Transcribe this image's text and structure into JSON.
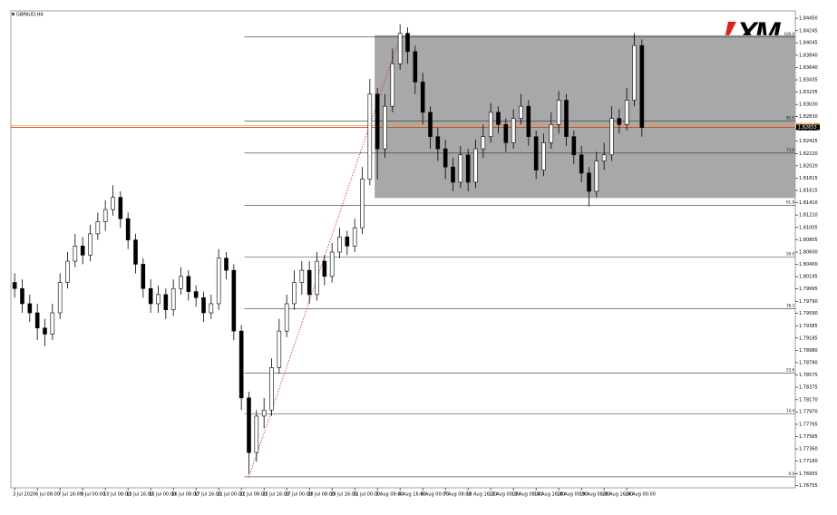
{
  "chart_data": {
    "type": "candlestick",
    "title": "GBPAUD,H4",
    "logo": "XM",
    "categories": [
      "3 Jul 2020",
      null,
      null,
      "6 Jul 08:00",
      null,
      null,
      "7 Jul 16:00",
      null,
      null,
      "9 Jul 00:00",
      null,
      null,
      "10 Jul 08:00",
      null,
      null,
      "13 Jul 16:00",
      null,
      null,
      "15 Jul 00:00",
      null,
      null,
      "16 Jul 08:00",
      null,
      null,
      "17 Jul 16:00",
      null,
      null,
      "21 Jul 00:00",
      null,
      null,
      "22 Jul 08:00",
      null,
      null,
      "23 Jul 16:00",
      null,
      null,
      "27 Jul 00:00",
      null,
      null,
      "28 Jul 08:00",
      null,
      null,
      "29 Jul 16:00",
      null,
      null,
      "31 Jul 00:00",
      null,
      null,
      "3 Aug 08:00",
      null,
      null,
      "4 Aug 16:00",
      null,
      null,
      "6 Aug 00:00",
      null,
      null,
      "7 Aug 08:00",
      null,
      null,
      "10 Aug 16:00",
      null,
      null,
      "12 Aug 00:00",
      null,
      null,
      "13 Aug 08:00",
      null,
      null,
      "14 Aug 16:00",
      null,
      null,
      "18 Aug 00:00",
      null,
      null,
      "19 Aug 08:00",
      null,
      null,
      "20 Aug 16:00",
      null,
      null,
      "24 Aug 00:00",
      null,
      null
    ],
    "open": [
      1.801,
      1.8,
      1.7975,
      1.796,
      1.7935,
      1.7925,
      1.796,
      1.801,
      1.8045,
      1.807,
      1.8055,
      1.809,
      1.811,
      1.813,
      1.815,
      1.8115,
      1.808,
      1.804,
      1.8,
      1.7975,
      1.799,
      1.7965,
      1.8,
      1.802,
      1.7995,
      1.7985,
      1.796,
      1.7975,
      1.805,
      1.803,
      1.793,
      1.782,
      1.773,
      1.779,
      1.78,
      1.787,
      1.793,
      1.7975,
      1.801,
      1.803,
      1.799,
      1.8045,
      1.802,
      1.806,
      1.8085,
      1.807,
      1.81,
      1.818,
      1.832,
      1.823,
      1.83,
      1.837,
      1.842,
      1.839,
      1.834,
      1.829,
      1.825,
      1.823,
      1.82,
      1.8175,
      1.822,
      1.8175,
      1.823,
      1.825,
      1.829,
      1.827,
      1.824,
      1.828,
      1.83,
      1.825,
      1.8195,
      1.824,
      1.827,
      1.831,
      1.825,
      1.822,
      1.819,
      1.816,
      1.821,
      1.822,
      1.828,
      1.827,
      1.831,
      1.84
    ],
    "high": [
      1.8025,
      1.8015,
      1.799,
      1.7975,
      1.795,
      1.7975,
      1.8025,
      1.806,
      1.809,
      1.8085,
      1.8105,
      1.8125,
      1.8145,
      1.817,
      1.816,
      1.8125,
      1.809,
      1.805,
      1.8015,
      1.8005,
      1.8,
      1.8015,
      1.8035,
      1.803,
      1.8005,
      1.7995,
      1.799,
      1.8065,
      1.806,
      1.804,
      1.794,
      1.783,
      1.78,
      1.782,
      1.7885,
      1.795,
      1.799,
      1.803,
      1.8045,
      1.8045,
      1.806,
      1.8055,
      1.8075,
      1.81,
      1.8095,
      1.8115,
      1.82,
      1.8345,
      1.833,
      1.832,
      1.8395,
      1.8435,
      1.843,
      1.84,
      1.8355,
      1.83,
      1.8265,
      1.8245,
      1.8215,
      1.8235,
      1.823,
      1.8245,
      1.827,
      1.8305,
      1.83,
      1.828,
      1.8295,
      1.832,
      1.831,
      1.826,
      1.8255,
      1.829,
      1.8325,
      1.832,
      1.826,
      1.8235,
      1.82,
      1.8225,
      1.824,
      1.83,
      1.8295,
      1.833,
      1.842,
      1.841
    ],
    "low": [
      1.7985,
      1.796,
      1.7945,
      1.7915,
      1.7905,
      1.7915,
      1.795,
      1.8,
      1.8035,
      1.804,
      1.8045,
      1.808,
      1.8095,
      1.812,
      1.81,
      1.8065,
      1.8025,
      1.7985,
      1.796,
      1.796,
      1.795,
      1.7955,
      1.799,
      1.798,
      1.797,
      1.7945,
      1.795,
      1.7965,
      1.8015,
      1.7915,
      1.78,
      1.7695,
      1.7715,
      1.777,
      1.779,
      1.786,
      1.792,
      1.7965,
      1.799,
      1.7975,
      1.798,
      1.8005,
      1.801,
      1.805,
      1.8055,
      1.806,
      1.809,
      1.817,
      1.818,
      1.8215,
      1.829,
      1.836,
      1.837,
      1.832,
      1.827,
      1.823,
      1.821,
      1.818,
      1.816,
      1.8165,
      1.816,
      1.8165,
      1.8215,
      1.824,
      1.8255,
      1.8225,
      1.823,
      1.827,
      1.8235,
      1.818,
      1.8185,
      1.823,
      1.8255,
      1.8235,
      1.8205,
      1.8175,
      1.8135,
      1.815,
      1.8195,
      1.821,
      1.8255,
      1.826,
      1.83,
      1.825
    ],
    "close": [
      1.8,
      1.7975,
      1.796,
      1.7935,
      1.7925,
      1.796,
      1.801,
      1.8045,
      1.807,
      1.8055,
      1.809,
      1.811,
      1.813,
      1.815,
      1.8115,
      1.808,
      1.804,
      1.8,
      1.7975,
      1.799,
      1.7965,
      1.8,
      1.802,
      1.7995,
      1.7985,
      1.796,
      1.7975,
      1.805,
      1.803,
      1.793,
      1.782,
      1.773,
      1.779,
      1.78,
      1.787,
      1.793,
      1.7975,
      1.801,
      1.803,
      1.799,
      1.8045,
      1.802,
      1.806,
      1.8085,
      1.807,
      1.81,
      1.818,
      1.832,
      1.823,
      1.83,
      1.837,
      1.842,
      1.839,
      1.834,
      1.829,
      1.825,
      1.823,
      1.82,
      1.8175,
      1.822,
      1.8175,
      1.823,
      1.825,
      1.829,
      1.827,
      1.824,
      1.828,
      1.83,
      1.825,
      1.8195,
      1.824,
      1.827,
      1.831,
      1.825,
      1.822,
      1.819,
      1.816,
      1.821,
      1.822,
      1.828,
      1.827,
      1.831,
      1.84,
      1.8265
    ],
    "ylim": [
      1.7672,
      1.8457
    ],
    "yticks": [
      {
        "value": 1.8445,
        "label": "1.84450"
      },
      1.84245,
      1.84045,
      {
        "value": 1.8384,
        "label": "1.83840"
      },
      {
        "value": 1.8364,
        "label": "1.83640"
      },
      1.83435,
      1.83235,
      {
        "value": 1.8303,
        "label": "1.83030"
      },
      {
        "value": 1.8283,
        "label": "1.82830"
      },
      1.82625,
      1.82425,
      {
        "value": 1.8222,
        "label": "1.82220"
      },
      {
        "value": 1.8202,
        "label": "1.82020"
      },
      1.81815,
      1.81615,
      {
        "value": 1.8141,
        "label": "1.81410"
      },
      {
        "value": 1.8121,
        "label": "1.81210"
      },
      1.81005,
      1.80805,
      {
        "value": 1.806,
        "label": "1.80600"
      },
      {
        "value": 1.804,
        "label": "1.80400"
      },
      1.80195,
      1.79995,
      {
        "value": 1.7979,
        "label": "1.79790"
      },
      {
        "value": 1.7959,
        "label": "1.79590"
      },
      1.79385,
      1.79185,
      {
        "value": 1.7898,
        "label": "1.78980"
      },
      {
        "value": 1.7878,
        "label": "1.78780"
      },
      1.78575,
      1.78375,
      {
        "value": 1.7817,
        "label": "1.78170"
      },
      {
        "value": 1.7797,
        "label": "1.77970"
      },
      1.77765,
      1.77565,
      {
        "value": 1.7736,
        "label": "1.77360"
      },
      {
        "value": 1.7716,
        "label": "1.77160"
      },
      1.76955,
      1.76755
    ],
    "fib_levels": [
      {
        "label": "100.0",
        "price": 1.8414
      },
      {
        "label": "81.0",
        "price": 1.8276
      },
      {
        "label": "73.6",
        "price": 1.8223
      },
      {
        "label": "61.8",
        "price": 1.8137
      },
      {
        "label": "50.0",
        "price": 1.8052
      },
      {
        "label": "38.2",
        "price": 1.7967
      },
      {
        "label": "23.6",
        "price": 1.7861
      },
      {
        "label": "14.4",
        "price": 1.7794
      },
      {
        "label": "0.0",
        "price": 1.769
      }
    ],
    "fib_start_index": 31,
    "trend_line": {
      "from_index": 31,
      "from_price": 1.769,
      "to_index": 51,
      "to_price": 1.8414,
      "color": "#e03030"
    },
    "range_box": {
      "from_index": 48,
      "top": 1.8417,
      "bottom": 1.8149,
      "color": "#a8a8a8"
    },
    "ask_line": {
      "price": 1.8268,
      "color": "#f0a030"
    },
    "bid_line": {
      "price": 1.82653,
      "color": "#d04020"
    },
    "bull_color": "#ffffff",
    "bear_color": "#000000"
  }
}
